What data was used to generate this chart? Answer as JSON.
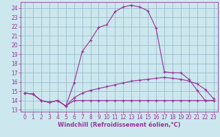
{
  "xlabel": "Windchill (Refroidissement éolien,°C)",
  "bg_color": "#cce8ee",
  "grid_color": "#99bbcc",
  "line_color": "#993399",
  "x_ticks": [
    0,
    1,
    2,
    3,
    4,
    5,
    6,
    7,
    8,
    9,
    10,
    11,
    12,
    13,
    14,
    15,
    16,
    17,
    18,
    19,
    20,
    21,
    22,
    23
  ],
  "y_ticks": [
    13,
    14,
    15,
    16,
    17,
    18,
    19,
    20,
    21,
    22,
    23,
    24
  ],
  "ylim": [
    12.8,
    24.6
  ],
  "xlim": [
    -0.5,
    23.5
  ],
  "series": [
    [
      14.8,
      14.7,
      14.0,
      13.8,
      14.0,
      13.4,
      15.9,
      19.3,
      20.5,
      21.9,
      22.2,
      23.6,
      24.1,
      24.3,
      24.1,
      23.7,
      21.8,
      17.1,
      17.0,
      17.0,
      16.3,
      15.1,
      14.0,
      14.0
    ],
    [
      14.8,
      14.7,
      14.0,
      13.8,
      14.0,
      13.4,
      14.3,
      14.8,
      15.1,
      15.3,
      15.5,
      15.7,
      15.9,
      16.1,
      16.2,
      16.3,
      16.4,
      16.5,
      16.4,
      16.3,
      16.1,
      15.8,
      15.2,
      14.2
    ],
    [
      14.8,
      14.7,
      14.0,
      13.8,
      14.0,
      13.4,
      14.0,
      14.0,
      14.0,
      14.0,
      14.0,
      14.0,
      14.0,
      14.0,
      14.0,
      14.0,
      14.0,
      14.0,
      14.0,
      14.0,
      14.0,
      14.0,
      14.0,
      14.0
    ]
  ],
  "tick_fontsize": 5.5,
  "xlabel_fontsize": 6,
  "tick_color": "#993399",
  "spine_color": "#993399"
}
